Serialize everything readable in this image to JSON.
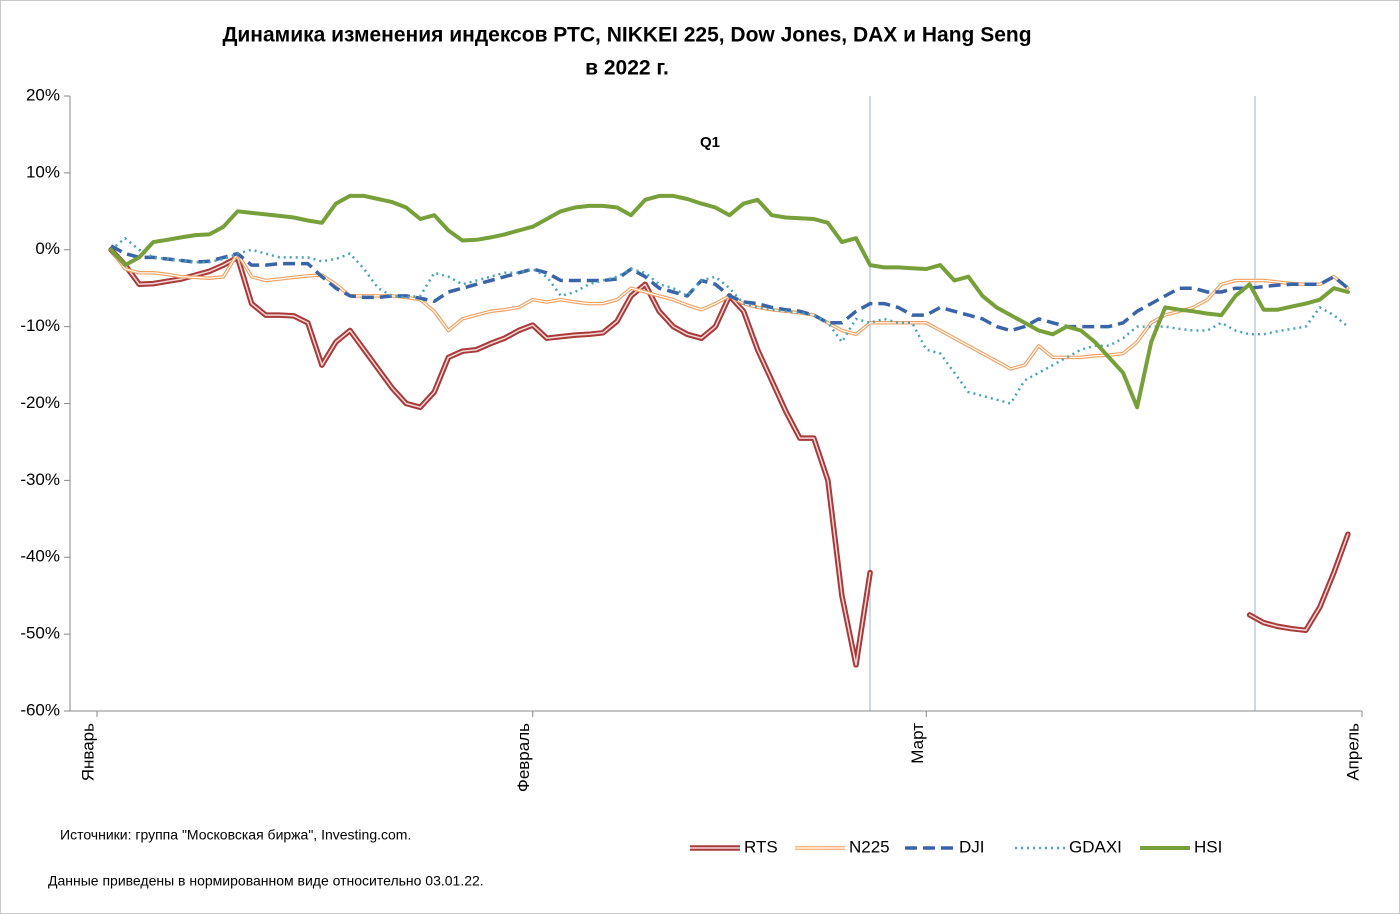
{
  "chart_data": {
    "type": "line",
    "title": "Динамика изменения индексов  РТС, NIKKEI 225, Dow Jones, DAX и  Hang Seng",
    "subtitle": "в 2022 г.",
    "annotations": [
      "Q1"
    ],
    "notes": [
      "Источники: группа \"Московская биржа\",  Investing.com.",
      "Данные приведены  в нормированном  виде относительно 03.01.22."
    ],
    "categories": [
      "Январь",
      null,
      null,
      null,
      null,
      null,
      null,
      null,
      null,
      null,
      null,
      null,
      null,
      null,
      null,
      null,
      null,
      null,
      null,
      null,
      null,
      null,
      null,
      null,
      null,
      null,
      null,
      null,
      null,
      null,
      null,
      "Февраль",
      null,
      null,
      null,
      null,
      null,
      null,
      null,
      null,
      null,
      null,
      null,
      null,
      null,
      null,
      null,
      null,
      null,
      null,
      null,
      null,
      null,
      null,
      null,
      null,
      null,
      null,
      null,
      "Март",
      null,
      null,
      null,
      null,
      null,
      null,
      null,
      null,
      null,
      null,
      null,
      null,
      null,
      null,
      null,
      null,
      null,
      null,
      null,
      null,
      null,
      null,
      null,
      null,
      null,
      null,
      null,
      null,
      null,
      null,
      "Апрель"
    ],
    "ylim": [
      -60,
      20
    ],
    "yticks": [
      {
        "value": -60,
        "label": "-60%"
      },
      {
        "value": -50,
        "label": "-50%"
      },
      {
        "value": -40,
        "label": "-40%"
      },
      {
        "value": -30,
        "label": "-30%"
      },
      {
        "value": -20,
        "label": "-20%"
      },
      {
        "value": -10,
        "label": "-10%"
      },
      {
        "value": 0,
        "label": "0%"
      },
      {
        "value": 10,
        "label": "10%"
      },
      {
        "value": 20,
        "label": "20%"
      }
    ],
    "grid": false,
    "legend": "bottom",
    "series": [
      {
        "name": "RTS",
        "color": "#a83a3a",
        "line_style": "double",
        "values": [
          null,
          0,
          -2,
          -4.5,
          -4.4,
          -4.1,
          -3.8,
          -3.3,
          -2.8,
          -2,
          -1,
          -7,
          -8.5,
          -8.5,
          -8.6,
          -9.5,
          -15,
          -12,
          -10.5,
          -13,
          -15.5,
          -18,
          -20,
          -20.5,
          -18.5,
          -14,
          -13.2,
          -13,
          -12.2,
          -11.5,
          -10.5,
          -9.8,
          -11.5,
          -11.3,
          -11.1,
          -11,
          -10.8,
          -9.3,
          -6,
          -4.5,
          -8,
          -10,
          -11,
          -11.5,
          -10,
          -6,
          -8,
          -13,
          -17,
          -21,
          -24.5,
          -24.5,
          -30,
          -45,
          -54,
          -42,
          null,
          null,
          null,
          null,
          null,
          null,
          null,
          null,
          null,
          null,
          null,
          null,
          null,
          null,
          null,
          null,
          null,
          null,
          null,
          null,
          null,
          null,
          null,
          null,
          null,
          null,
          -47.5,
          -48.5,
          -49,
          -49.3,
          -49.5,
          -46.5,
          -42,
          -37,
          null
        ]
      },
      {
        "name": "N225",
        "color": "#f0a060",
        "line_style": "double-thin",
        "values": [
          null,
          0,
          -2.5,
          -3,
          -3,
          -3.2,
          -3.5,
          -3.6,
          -3.7,
          -3.5,
          -0.5,
          -3.5,
          -4,
          -3.8,
          -3.6,
          -3.4,
          -3.3,
          -4.5,
          -6,
          -6,
          -6,
          -6,
          -6.2,
          -6.5,
          -8,
          -10.5,
          -9,
          -8.5,
          -8,
          -7.8,
          -7.5,
          -6.5,
          -6.8,
          -6.5,
          -6.8,
          -7,
          -7,
          -6.5,
          -5,
          -5.5,
          -6,
          -6.5,
          -7.2,
          -7.8,
          -7,
          -6,
          -7,
          -7.5,
          -7.8,
          -8,
          -8.2,
          -8.5,
          -9.5,
          -10.5,
          -11,
          -9.5,
          -9.5,
          -9.5,
          -9.5,
          -9.5,
          -10.5,
          -11.5,
          -12.5,
          -13.5,
          -14.5,
          -15.5,
          -15,
          -12.5,
          -14,
          -14,
          -14,
          -13.8,
          -13.7,
          -13.5,
          -12,
          -9.5,
          -8.5,
          -8,
          -7.5,
          -6.5,
          -4.5,
          -4,
          -4,
          -4,
          -4.2,
          -4.4,
          -4.5,
          -4.5,
          -3.5,
          -5,
          null
        ]
      },
      {
        "name": "DJI",
        "color": "#3a64a8",
        "line_style": "dash",
        "values": [
          null,
          0.5,
          -0.5,
          -1,
          -1,
          -1.2,
          -1.4,
          -1.6,
          -1.5,
          -1,
          -0.5,
          -2,
          -2,
          -1.8,
          -1.8,
          -1.8,
          -3.5,
          -5,
          -6,
          -6.2,
          -6.2,
          -6,
          -6,
          -6.3,
          -6.7,
          -5.5,
          -5,
          -4.5,
          -4,
          -3.5,
          -3,
          -2.5,
          -3,
          -4,
          -4,
          -4,
          -4,
          -3.8,
          -2.5,
          -3.5,
          -5,
          -5.5,
          -6,
          -4,
          -4.5,
          -6,
          -6.8,
          -7,
          -7.5,
          -7.8,
          -8,
          -8.5,
          -9.5,
          -9.5,
          -8,
          -7,
          -7,
          -7.5,
          -8.5,
          -8.5,
          -7.5,
          -8,
          -8.5,
          -9,
          -10,
          -10.5,
          -10,
          -9,
          -9.5,
          -10,
          -10,
          -10,
          -10,
          -9.5,
          -8,
          -7,
          -6,
          -5,
          -5,
          -5.5,
          -5.5,
          -5,
          -5,
          -4.8,
          -4.6,
          -4.5,
          -4.5,
          -4.5,
          -3.5,
          -5,
          null
        ]
      },
      {
        "name": "GDAXI",
        "color": "#4aa3b8",
        "line_style": "dot",
        "values": [
          null,
          0,
          1.5,
          0,
          -1,
          -1.2,
          -1.4,
          -1.6,
          -1.6,
          -1.2,
          -0.5,
          0,
          -0.5,
          -1,
          -1,
          -1,
          -1.5,
          -1.2,
          -0.5,
          -2.5,
          -5,
          -6,
          -6.2,
          -6,
          -3,
          -3.5,
          -4.5,
          -4,
          -3.5,
          -3,
          -3,
          -2.5,
          -3.5,
          -6,
          -5.5,
          -4.5,
          -4,
          -3.5,
          -2.5,
          -3,
          -4.5,
          -5,
          -6,
          -4,
          -3.5,
          -5,
          -7,
          -7.5,
          -7.8,
          -8,
          -8.2,
          -8.5,
          -9.5,
          -12,
          -9,
          -9.5,
          -9,
          -9.5,
          -9.5,
          -13,
          -13.5,
          -16,
          -18.5,
          -19,
          -19.5,
          -20,
          -17,
          -16,
          -15,
          -14,
          -13,
          -12.5,
          -12.5,
          -11.5,
          -10,
          -10,
          -10,
          -10.3,
          -10.5,
          -10.5,
          -9.5,
          -10.5,
          -11,
          -11,
          -10.6,
          -10.3,
          -10,
          -7.5,
          -8.5,
          -10,
          null
        ]
      },
      {
        "name": "HSI",
        "color": "#77a03a",
        "line_style": "solid",
        "values": [
          null,
          0,
          -2,
          -1,
          1,
          1.3,
          1.6,
          1.9,
          2,
          3,
          5,
          4.8,
          4.6,
          4.4,
          4.2,
          3.8,
          3.5,
          6,
          7,
          7,
          6.6,
          6.2,
          5.5,
          4,
          4.5,
          2.5,
          1.2,
          1.3,
          1.6,
          2,
          2.5,
          3,
          4,
          5,
          5.5,
          5.7,
          5.7,
          5.5,
          4.5,
          6.5,
          7,
          7,
          6.6,
          6,
          5.5,
          4.5,
          6,
          6.5,
          4.5,
          4.2,
          4.1,
          4,
          3.5,
          1,
          1.5,
          -2,
          -2.3,
          -2.3,
          -2.4,
          -2.5,
          -2,
          -4,
          -3.5,
          -6,
          -7.5,
          -8.5,
          -9.5,
          -10.5,
          -11,
          -10,
          -10.5,
          -12,
          -14,
          -16,
          -20.5,
          -12,
          -7.5,
          -7.8,
          -8,
          -8.3,
          -8.5,
          -6,
          -4.5,
          -7.8,
          -7.8,
          -7.4,
          -7,
          -6.5,
          -5,
          -5.5,
          null
        ]
      }
    ]
  }
}
